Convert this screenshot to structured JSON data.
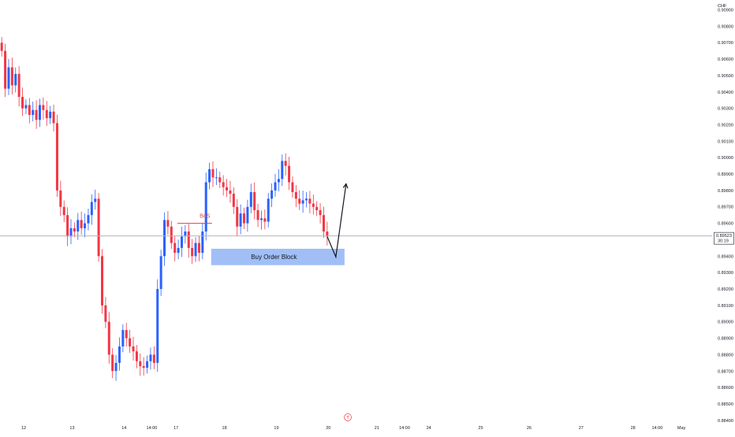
{
  "chart_data": {
    "type": "candlestick",
    "currency": "CHF",
    "y_axis": {
      "min": 0.8838,
      "max": 0.9096,
      "ticks": [
        "0.90900",
        "0.90800",
        "0.90700",
        "0.90600",
        "0.90500",
        "0.90400",
        "0.90300",
        "0.90200",
        "0.90100",
        "0.90000",
        "0.89900",
        "0.89800",
        "0.89700",
        "0.89600",
        "0.89500",
        "0.89400",
        "0.89300",
        "0.89200",
        "0.89100",
        "0.89000",
        "0.88900",
        "0.88800",
        "0.88700",
        "0.88600",
        "0.88500",
        "0.88400"
      ]
    },
    "x_axis": {
      "ticks": [
        {
          "label": "12",
          "pos": 0
        },
        {
          "label": "13",
          "pos": 14
        },
        {
          "label": "14",
          "pos": 29
        },
        {
          "label": "14:00",
          "pos": 37
        },
        {
          "label": "17",
          "pos": 44
        },
        {
          "label": "18",
          "pos": 58
        },
        {
          "label": "19",
          "pos": 73
        },
        {
          "label": "20",
          "pos": 88
        },
        {
          "label": "21",
          "pos": 102
        },
        {
          "label": "14:00",
          "pos": 110
        },
        {
          "label": "24",
          "pos": 117
        },
        {
          "label": "25",
          "pos": 132
        },
        {
          "label": "26",
          "pos": 146
        },
        {
          "label": "27",
          "pos": 161
        },
        {
          "label": "28",
          "pos": 176
        },
        {
          "label": "14:00",
          "pos": 183
        },
        {
          "label": "May",
          "pos": 190
        }
      ]
    },
    "current_price": {
      "value": 0.89523,
      "label": "0.89523",
      "countdown": "30:19"
    },
    "colors": {
      "up": "#2962ff",
      "down": "#f23645",
      "grid_line": "#b2b5be",
      "zone": "#90b4f5",
      "bos": "#f23645",
      "arrow": "#131722",
      "text": "#131722"
    },
    "close": [
      0.9065,
      0.9042,
      0.9055,
      0.9044,
      0.9051,
      0.9037,
      0.903,
      0.9032,
      0.9026,
      0.9029,
      0.9023,
      0.9032,
      0.9029,
      0.9024,
      0.9028,
      0.9021,
      0.898,
      0.897,
      0.8965,
      0.8952,
      0.8957,
      0.8955,
      0.8962,
      0.8957,
      0.896,
      0.8965,
      0.8973,
      0.8975,
      0.894,
      0.891,
      0.89,
      0.888,
      0.887,
      0.8875,
      0.8885,
      0.8895,
      0.889,
      0.8885,
      0.8882,
      0.8876,
      0.8873,
      0.8872,
      0.8876,
      0.888,
      0.8875,
      0.892,
      0.894,
      0.8962,
      0.8958,
      0.8948,
      0.8942,
      0.8945,
      0.8952,
      0.8955,
      0.8945,
      0.894,
      0.8948,
      0.8942,
      0.8955,
      0.8985,
      0.8993,
      0.8988,
      0.8988,
      0.8985,
      0.8982,
      0.898,
      0.8978,
      0.897,
      0.8958,
      0.8966,
      0.896,
      0.897,
      0.8979,
      0.8968,
      0.8962,
      0.8963,
      0.8961,
      0.8975,
      0.898,
      0.8985,
      0.8987,
      0.8998,
      0.8995,
      0.8985,
      0.8979,
      0.8975,
      0.8972,
      0.8974,
      0.8975,
      0.8972,
      0.897,
      0.8968,
      0.8965,
      0.8955,
      0.8952
    ]
  },
  "annotations": {
    "bos_label": "BoS",
    "order_block_label": "Buy Order Block",
    "order_block_top": 0.89445,
    "order_block_bottom": 0.89345,
    "bos_level": 0.896,
    "arrow": {
      "dip_price": 0.89395,
      "target_price": 0.8984
    }
  },
  "icons": {
    "watermark": "tradingview-logo-icon"
  }
}
